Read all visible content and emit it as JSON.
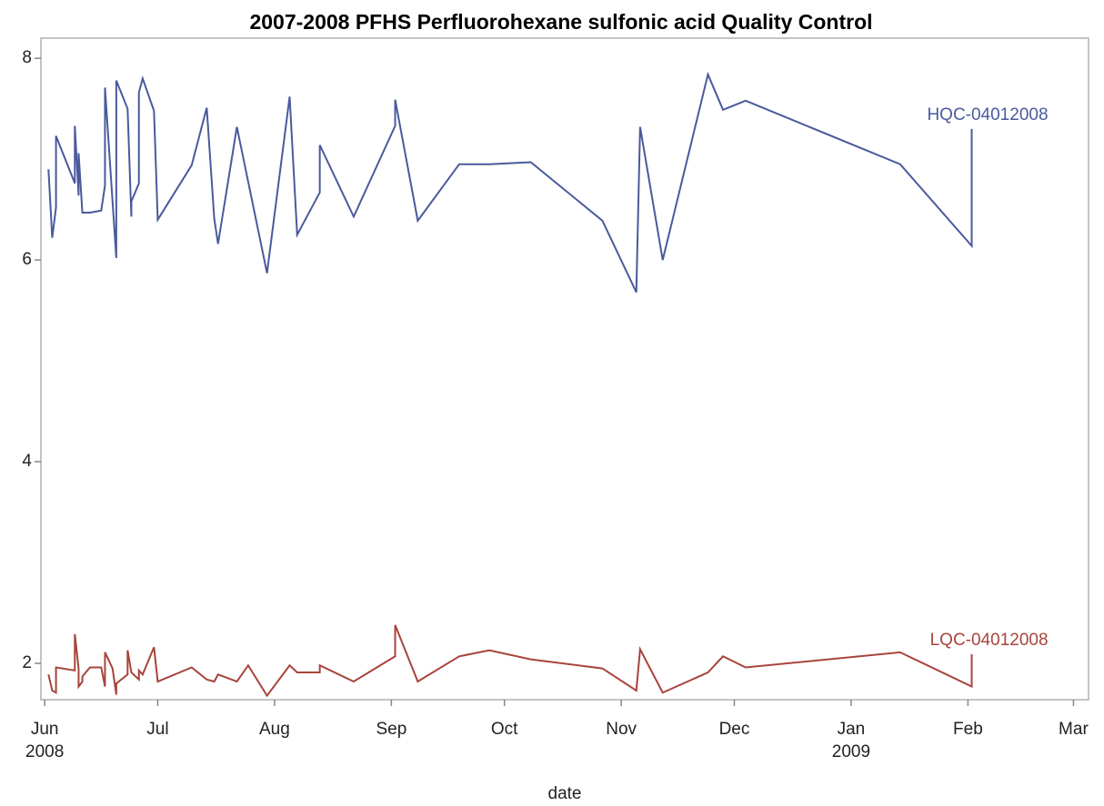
{
  "chart_data": {
    "type": "line",
    "title": "2007-2008 PFHS Perfluorohexane sulfonic acid Quality Control",
    "x_label": "date",
    "xlim": [
      "2008-05-31",
      "2009-03-05"
    ],
    "xticks": [
      {
        "value": "2008-06-01",
        "label": "Jun",
        "year": "2008"
      },
      {
        "value": "2008-07-01",
        "label": "Jul"
      },
      {
        "value": "2008-08-01",
        "label": "Aug"
      },
      {
        "value": "2008-09-01",
        "label": "Sep"
      },
      {
        "value": "2008-10-01",
        "label": "Oct"
      },
      {
        "value": "2008-11-01",
        "label": "Nov"
      },
      {
        "value": "2008-12-01",
        "label": "Dec"
      },
      {
        "value": "2009-01-01",
        "label": "Jan",
        "year": "2009"
      },
      {
        "value": "2009-02-01",
        "label": "Feb"
      },
      {
        "value": "2009-03-01",
        "label": "Mar"
      }
    ],
    "ylim": [
      1.64,
      8.2
    ],
    "yticks": [
      2,
      4,
      6,
      8
    ],
    "grid": false,
    "series": [
      {
        "name": "HQC-04012008",
        "color": "#4a5a9c",
        "x": [
          "2008-06-02",
          "2008-06-03",
          "2008-06-04",
          "2008-06-04",
          "2008-06-09",
          "2008-06-09",
          "2008-06-10",
          "2008-06-10",
          "2008-06-11",
          "2008-06-13",
          "2008-06-16",
          "2008-06-17",
          "2008-06-17",
          "2008-06-20",
          "2008-06-20",
          "2008-06-23",
          "2008-06-24",
          "2008-06-24",
          "2008-06-26",
          "2008-06-26",
          "2008-06-27",
          "2008-06-30",
          "2008-07-01",
          "2008-07-10",
          "2008-07-14",
          "2008-07-16",
          "2008-07-17",
          "2008-07-22",
          "2008-07-30",
          "2008-08-05",
          "2008-08-07",
          "2008-08-13",
          "2008-08-13",
          "2008-08-22",
          "2008-09-02",
          "2008-09-02",
          "2008-09-08",
          "2008-09-19",
          "2008-09-27",
          "2008-10-08",
          "2008-10-27",
          "2008-11-05",
          "2008-11-06",
          "2008-11-12",
          "2008-11-24",
          "2008-11-28",
          "2008-12-04",
          "2009-01-14",
          "2009-02-02",
          "2009-02-02"
        ],
        "values": [
          6.9,
          6.22,
          6.52,
          7.23,
          6.76,
          7.33,
          6.64,
          7.06,
          6.47,
          6.47,
          6.49,
          6.74,
          7.71,
          6.02,
          7.78,
          7.5,
          6.43,
          6.58,
          6.76,
          7.66,
          7.8,
          7.48,
          6.4,
          6.94,
          7.51,
          6.41,
          6.16,
          7.32,
          5.87,
          7.62,
          6.25,
          6.67,
          7.14,
          6.43,
          7.33,
          7.59,
          6.39,
          6.95,
          6.95,
          6.97,
          6.39,
          5.68,
          7.32,
          6.0,
          7.84,
          7.49,
          7.58,
          6.95,
          6.14,
          7.3
        ]
      },
      {
        "name": "LQC-04012008",
        "color": "#a8443c",
        "x": [
          "2008-06-02",
          "2008-06-03",
          "2008-06-04",
          "2008-06-04",
          "2008-06-09",
          "2008-06-09",
          "2008-06-10",
          "2008-06-10",
          "2008-06-11",
          "2008-06-11",
          "2008-06-13",
          "2008-06-16",
          "2008-06-17",
          "2008-06-17",
          "2008-06-19",
          "2008-06-20",
          "2008-06-20",
          "2008-06-23",
          "2008-06-23",
          "2008-06-24",
          "2008-06-26",
          "2008-06-26",
          "2008-06-27",
          "2008-06-30",
          "2008-07-01",
          "2008-07-10",
          "2008-07-14",
          "2008-07-16",
          "2008-07-17",
          "2008-07-22",
          "2008-07-25",
          "2008-07-30",
          "2008-08-05",
          "2008-08-07",
          "2008-08-13",
          "2008-08-13",
          "2008-08-22",
          "2008-09-02",
          "2008-09-02",
          "2008-09-08",
          "2008-09-19",
          "2008-09-27",
          "2008-10-08",
          "2008-10-27",
          "2008-11-05",
          "2008-11-06",
          "2008-11-12",
          "2008-11-24",
          "2008-11-28",
          "2008-12-04",
          "2009-01-14",
          "2009-02-02",
          "2009-02-02"
        ],
        "values": [
          1.89,
          1.73,
          1.71,
          1.96,
          1.93,
          2.29,
          1.95,
          1.77,
          1.82,
          1.87,
          1.96,
          1.96,
          1.77,
          2.11,
          1.95,
          1.69,
          1.8,
          1.89,
          2.13,
          1.91,
          1.84,
          1.93,
          1.89,
          2.16,
          1.82,
          1.96,
          1.84,
          1.82,
          1.89,
          1.82,
          1.98,
          1.68,
          1.98,
          1.91,
          1.91,
          1.98,
          1.82,
          2.07,
          2.38,
          1.82,
          2.07,
          2.13,
          2.04,
          1.95,
          1.73,
          2.14,
          1.71,
          1.91,
          2.07,
          1.96,
          2.11,
          1.77,
          2.09
        ]
      }
    ]
  }
}
